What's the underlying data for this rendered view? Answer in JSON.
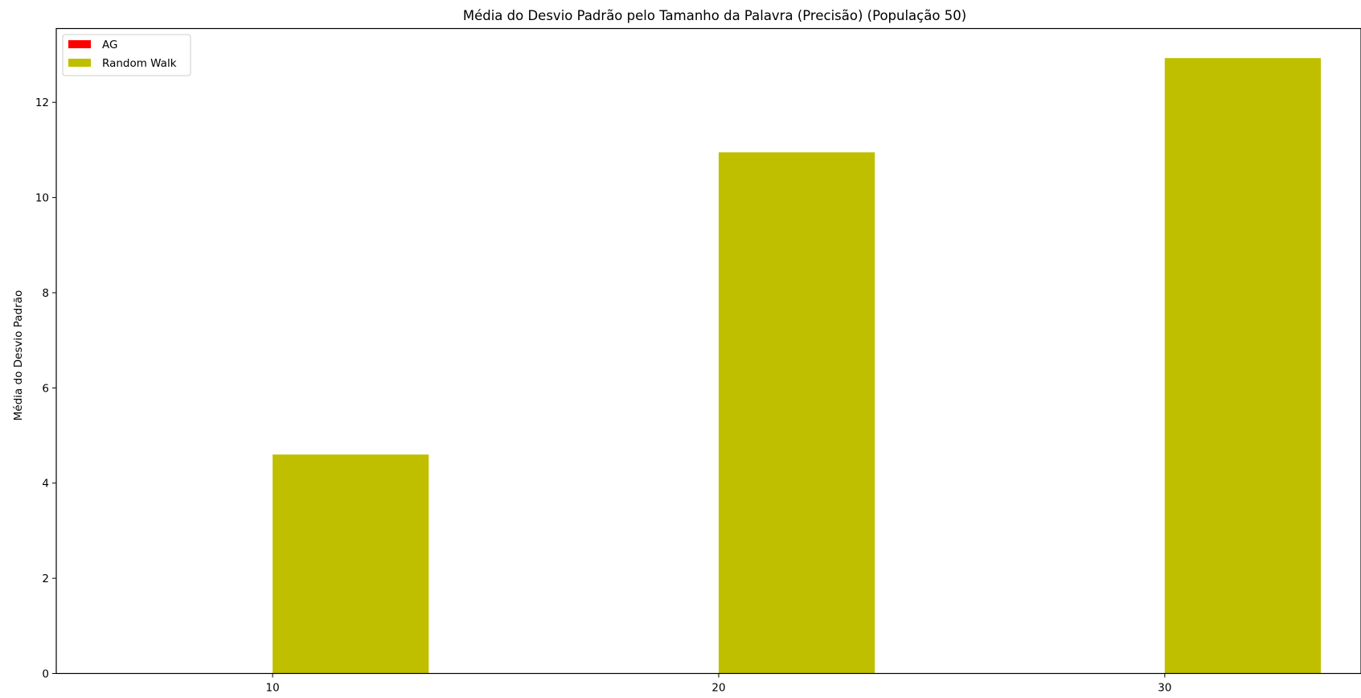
{
  "chart_data": {
    "type": "bar",
    "title": "Média do Desvio Padrão pelo Tamanho da Palavra (Precisão) (População 50)",
    "xlabel": "",
    "ylabel": "Média do Desvio Padrão",
    "categories": [
      10,
      20,
      30
    ],
    "series": [
      {
        "name": "AG",
        "color": "#ff0000",
        "values": [
          0,
          0,
          0
        ]
      },
      {
        "name": "Random Walk",
        "color": "#bfbf00",
        "values": [
          4.6,
          10.95,
          12.93
        ]
      }
    ],
    "xlim": [
      5.15,
      34.4
    ],
    "ylim": [
      0,
      13.55
    ],
    "yticks": [
      0,
      2,
      4,
      6,
      8,
      10,
      12
    ],
    "xticks": [
      10,
      20,
      30
    ],
    "grid": false,
    "legend_position": "top-left"
  }
}
